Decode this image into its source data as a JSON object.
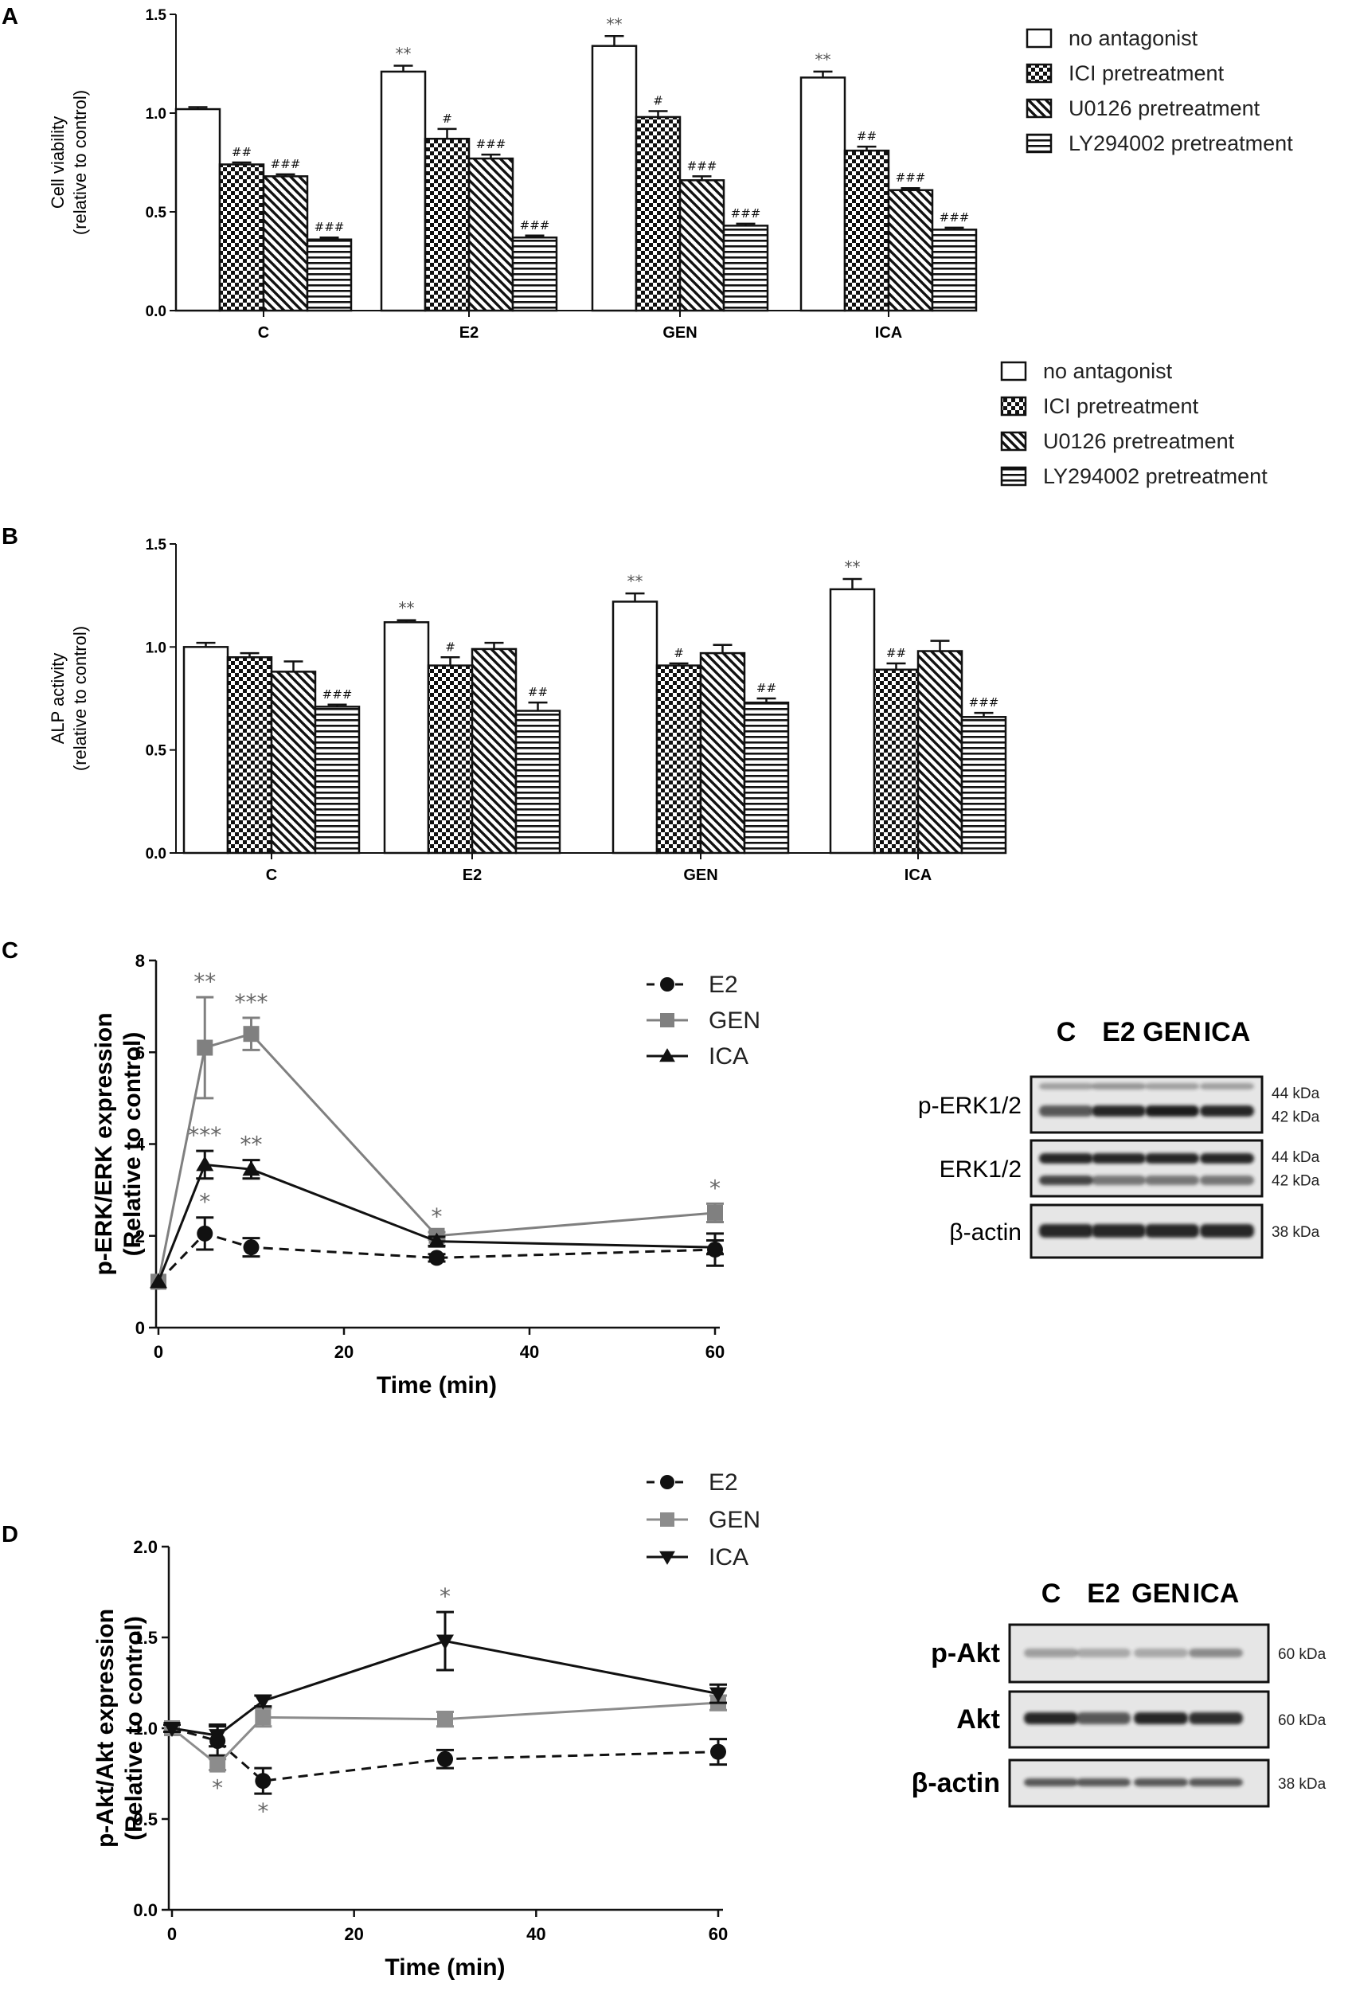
{
  "panels": {
    "A": {
      "label": "A"
    },
    "B": {
      "label": "B"
    },
    "C": {
      "label": "C"
    },
    "D": {
      "label": "D"
    }
  },
  "blots": {
    "C": {
      "lanes": [
        "C",
        "E2",
        "GEN",
        "ICA"
      ],
      "rows": [
        {
          "name": "p-ERK1/2",
          "kda": [
            "44 kDa",
            "42 kDa"
          ]
        },
        {
          "name": "ERK1/2",
          "kda": [
            "44 kDa",
            "42 kDa"
          ]
        },
        {
          "name": "β-actin",
          "kda": [
            "38 kDa"
          ]
        }
      ]
    },
    "D": {
      "lanes": [
        "C",
        "E2",
        "GEN",
        "ICA"
      ],
      "rows": [
        {
          "name": "p-Akt",
          "kda": [
            "60 kDa"
          ]
        },
        {
          "name": "Akt",
          "kda": [
            "60 kDa"
          ]
        },
        {
          "name": "β-actin",
          "kda": [
            "38 kDa"
          ]
        }
      ]
    }
  },
  "chart_data": [
    {
      "panel": "A",
      "type": "bar",
      "ylabel": [
        "Cell viability",
        "(relative to control)"
      ],
      "xlabel": "",
      "categories": [
        "C",
        "E2",
        "GEN",
        "ICA"
      ],
      "ylim": [
        0,
        1.5
      ],
      "yticks": [
        "0.0",
        "0.5",
        "1.0",
        "1.5"
      ],
      "series": [
        {
          "name": "no antagonist",
          "pattern": "white",
          "values": [
            1.02,
            1.21,
            1.34,
            1.18
          ],
          "errors": [
            0.01,
            0.03,
            0.05,
            0.03
          ],
          "marks": [
            "",
            "**",
            "**",
            "**"
          ]
        },
        {
          "name": "ICI pretreatment",
          "pattern": "check",
          "values": [
            0.74,
            0.87,
            0.98,
            0.81
          ],
          "errors": [
            0.01,
            0.05,
            0.03,
            0.02
          ],
          "marks": [
            "##",
            "#",
            "#",
            "##"
          ]
        },
        {
          "name": "U0126 pretreatment",
          "pattern": "diag",
          "values": [
            0.68,
            0.77,
            0.66,
            0.61
          ],
          "errors": [
            0.01,
            0.02,
            0.02,
            0.01
          ],
          "marks": [
            "###",
            "###",
            "###",
            "###"
          ]
        },
        {
          "name": "LY294002 pretreatment",
          "pattern": "horiz",
          "values": [
            0.36,
            0.37,
            0.43,
            0.41
          ],
          "errors": [
            0.01,
            0.01,
            0.01,
            0.01
          ],
          "marks": [
            "###",
            "###",
            "###",
            "###"
          ]
        }
      ]
    },
    {
      "panel": "B",
      "type": "bar",
      "ylabel": [
        "ALP activity",
        "(relative to control)"
      ],
      "xlabel": "",
      "categories": [
        "C",
        "E2",
        "GEN",
        "ICA"
      ],
      "ylim": [
        0,
        1.5
      ],
      "yticks": [
        "0.0",
        "0.5",
        "1.0",
        "1.5"
      ],
      "series": [
        {
          "name": "no antagonist",
          "pattern": "white",
          "values": [
            1.0,
            1.12,
            1.22,
            1.28
          ],
          "errors": [
            0.02,
            0.01,
            0.04,
            0.05
          ],
          "marks": [
            "",
            "**",
            "**",
            "**"
          ]
        },
        {
          "name": "ICI pretreatment",
          "pattern": "check",
          "values": [
            0.95,
            0.91,
            0.91,
            0.89
          ],
          "errors": [
            0.02,
            0.04,
            0.01,
            0.03
          ],
          "marks": [
            "",
            "#",
            "#",
            "##"
          ]
        },
        {
          "name": "U0126 pretreatment",
          "pattern": "diag",
          "values": [
            0.88,
            0.99,
            0.97,
            0.98
          ],
          "errors": [
            0.05,
            0.03,
            0.04,
            0.05
          ],
          "marks": [
            "",
            "",
            "",
            ""
          ]
        },
        {
          "name": "LY294002 pretreatment",
          "pattern": "horiz",
          "values": [
            0.71,
            0.69,
            0.73,
            0.66
          ],
          "errors": [
            0.01,
            0.04,
            0.02,
            0.02
          ],
          "marks": [
            "###",
            "##",
            "##",
            "###"
          ]
        }
      ]
    },
    {
      "panel": "C",
      "type": "line",
      "xlabel": "Time (min)",
      "ylabel": [
        "p-ERK/ERK expression",
        "(Relative to control)"
      ],
      "xlim": [
        0,
        60
      ],
      "ylim": [
        0,
        8
      ],
      "xticks": [
        "0",
        "20",
        "40",
        "60"
      ],
      "yticks": [
        "0",
        "2",
        "4",
        "6",
        "8"
      ],
      "x": [
        0,
        5,
        10,
        30,
        60
      ],
      "series": [
        {
          "name": "E2",
          "marker": "circle",
          "dashed": true,
          "color": "#111111",
          "values": [
            1.0,
            2.05,
            1.75,
            1.52,
            1.7
          ],
          "errors": [
            0.05,
            0.35,
            0.2,
            0.08,
            0.35
          ],
          "marks": [
            "",
            "*",
            "",
            "",
            ""
          ]
        },
        {
          "name": "GEN",
          "marker": "square",
          "dashed": false,
          "color": "#808080",
          "values": [
            1.0,
            6.1,
            6.4,
            2.0,
            2.5
          ],
          "errors": [
            0.05,
            1.1,
            0.35,
            0.08,
            0.2
          ],
          "marks": [
            "",
            "**",
            "***",
            "*",
            "*"
          ]
        },
        {
          "name": "ICA",
          "marker": "triangle",
          "dashed": false,
          "color": "#111111",
          "values": [
            1.0,
            3.55,
            3.45,
            1.88,
            1.75
          ],
          "errors": [
            0.05,
            0.3,
            0.2,
            0.1,
            0.15
          ],
          "marks": [
            "",
            "***",
            "**",
            "",
            ""
          ]
        }
      ]
    },
    {
      "panel": "D",
      "type": "line",
      "xlabel": "Time (min)",
      "ylabel": [
        "p-Akt/Akt expression",
        "(Relative to control)"
      ],
      "xlim": [
        0,
        60
      ],
      "ylim": [
        0,
        2.0
      ],
      "xticks": [
        "0",
        "20",
        "40",
        "60"
      ],
      "yticks": [
        "0.0",
        "0.5",
        "1.0",
        "1.5",
        "2.0"
      ],
      "x": [
        0,
        5,
        10,
        30,
        60
      ],
      "series": [
        {
          "name": "E2",
          "marker": "circle",
          "dashed": true,
          "color": "#111111",
          "values": [
            1.0,
            0.93,
            0.71,
            0.83,
            0.87
          ],
          "errors": [
            0.02,
            0.08,
            0.07,
            0.05,
            0.07
          ],
          "marks": [
            "",
            "",
            "*",
            "",
            ""
          ]
        },
        {
          "name": "GEN",
          "marker": "square",
          "dashed": false,
          "color": "#8c8c8c",
          "values": [
            1.0,
            0.8,
            1.06,
            1.05,
            1.14
          ],
          "errors": [
            0.02,
            0.03,
            0.05,
            0.04,
            0.04
          ],
          "marks": [
            "",
            "*",
            "",
            "",
            ""
          ]
        },
        {
          "name": "ICA",
          "marker": "triangle-down",
          "dashed": false,
          "color": "#111111",
          "values": [
            1.0,
            0.96,
            1.15,
            1.48,
            1.19
          ],
          "errors": [
            0.02,
            0.06,
            0.03,
            0.16,
            0.05
          ],
          "marks": [
            "",
            "",
            "",
            "*",
            ""
          ]
        }
      ]
    }
  ]
}
